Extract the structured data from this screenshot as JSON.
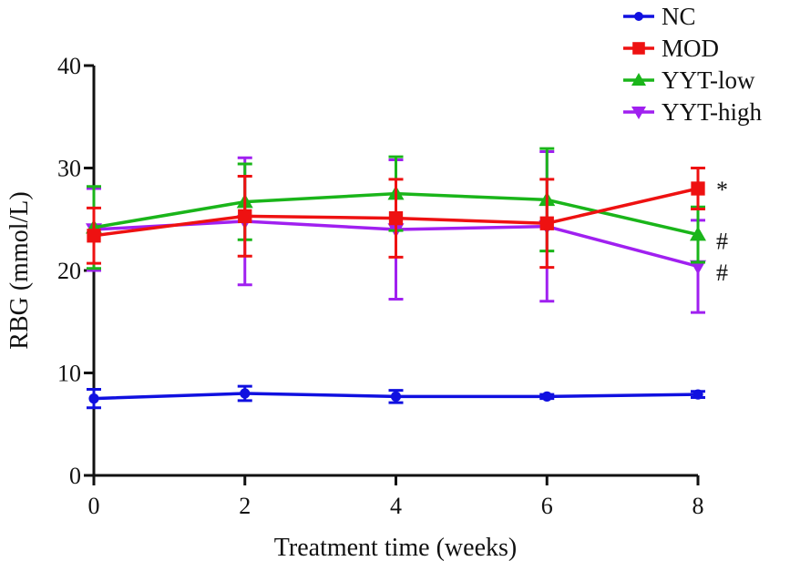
{
  "chart_data": {
    "type": "line",
    "xlabel": "Treatment time (weeks)",
    "ylabel": "RBG (mmol/L)",
    "xlim": [
      0,
      8
    ],
    "ylim": [
      0,
      40
    ],
    "x": [
      0,
      2,
      4,
      6,
      8
    ],
    "x_ticks": [
      "0",
      "2",
      "4",
      "6",
      "8"
    ],
    "y_ticks": [
      "0",
      "10",
      "20",
      "30",
      "40"
    ],
    "grid": false,
    "legend_position": "top-right",
    "series": [
      {
        "name": "NC",
        "color": "#1010e0",
        "marker": "circle",
        "values": [
          7.5,
          8.0,
          7.7,
          7.7,
          7.9
        ],
        "errors": [
          0.9,
          0.7,
          0.6,
          0.2,
          0.3
        ]
      },
      {
        "name": "MOD",
        "color": "#ee1111",
        "marker": "square",
        "values": [
          23.4,
          25.3,
          25.1,
          24.6,
          28.0
        ],
        "errors": [
          2.7,
          3.9,
          3.8,
          4.3,
          2.0
        ]
      },
      {
        "name": "YYT-low",
        "color": "#1ab51a",
        "marker": "triangle-up",
        "values": [
          24.2,
          26.7,
          27.5,
          26.9,
          23.5
        ],
        "errors": [
          4.0,
          3.7,
          3.6,
          5.0,
          2.7
        ]
      },
      {
        "name": "YYT-high",
        "color": "#a020f0",
        "marker": "triangle-down",
        "values": [
          24.0,
          24.8,
          24.0,
          24.3,
          20.4
        ],
        "errors": [
          4.0,
          6.2,
          6.8,
          7.3,
          4.5
        ]
      }
    ],
    "annotations": [
      {
        "text": "*",
        "x": 8,
        "y": 28.0
      },
      {
        "text": "#",
        "x": 8,
        "y": 23.0
      },
      {
        "text": "#",
        "x": 8,
        "y": 19.9
      }
    ]
  }
}
